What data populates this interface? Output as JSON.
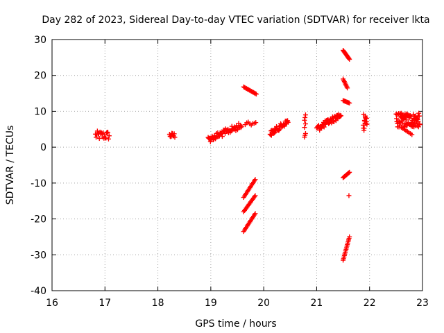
{
  "chart_data": {
    "type": "scatter",
    "title": "Day 282 of 2023, Sidereal Day-to-day VTEC variation (SDTVAR) for receiver lkta",
    "xlabel": "GPS time / hours",
    "ylabel": "SDTVAR / TECUs",
    "xlim": [
      16,
      23
    ],
    "ylim": [
      -40,
      30
    ],
    "xticks": [
      "16",
      "17",
      "18",
      "19",
      "20",
      "21",
      "22",
      "23"
    ],
    "yticks": [
      "-40",
      "-30",
      "-20",
      "-10",
      "0",
      "10",
      "20",
      "30"
    ],
    "grid": true,
    "marker": "plus",
    "color": "#ff0000",
    "series": [
      {
        "name": "SDTVAR",
        "segments": [
          {
            "x0": 16.82,
            "x1": 17.08,
            "y0": 2.0,
            "y1": 4.5,
            "n": 22,
            "trend": "spread"
          },
          {
            "x0": 18.22,
            "x1": 18.32,
            "y0": 2.5,
            "y1": 4.0,
            "n": 10,
            "trend": "spread"
          },
          {
            "x0": 18.95,
            "x1": 19.58,
            "y0": 3.0,
            "y1": 7.0,
            "n": 60,
            "trend": "up-spread"
          },
          {
            "x0": 19.65,
            "x1": 19.85,
            "y0": 6.0,
            "y1": 7.0,
            "n": 8,
            "trend": "flat"
          },
          {
            "x0": 19.62,
            "x1": 19.86,
            "y0": 16.8,
            "y1": 14.8,
            "n": 14,
            "trend": "line"
          },
          {
            "x0": 19.62,
            "x1": 19.84,
            "y0": -14.0,
            "y1": -9.0,
            "n": 14,
            "trend": "line"
          },
          {
            "x0": 19.62,
            "x1": 19.84,
            "y0": -18.0,
            "y1": -13.5,
            "n": 14,
            "trend": "line"
          },
          {
            "x0": 19.62,
            "x1": 19.84,
            "y0": -23.5,
            "y1": -18.5,
            "n": 14,
            "trend": "line"
          },
          {
            "x0": 20.12,
            "x1": 20.46,
            "y0": 4.5,
            "y1": 8.0,
            "n": 40,
            "trend": "up-spread"
          },
          {
            "x0": 20.77,
            "x1": 20.79,
            "y0": 7.5,
            "y1": 9.0,
            "n": 3,
            "trend": "line"
          },
          {
            "x0": 20.77,
            "x1": 20.79,
            "y0": 2.8,
            "y1": 3.8,
            "n": 3,
            "trend": "line"
          },
          {
            "x0": 20.77,
            "x1": 20.79,
            "y0": 5.5,
            "y1": 6.5,
            "n": 2,
            "trend": "line"
          },
          {
            "x0": 21.0,
            "x1": 21.46,
            "y0": 6.0,
            "y1": 10.0,
            "n": 50,
            "trend": "up-spread"
          },
          {
            "x0": 21.5,
            "x1": 21.62,
            "y0": 27.0,
            "y1": 24.5,
            "n": 12,
            "trend": "line"
          },
          {
            "x0": 21.5,
            "x1": 21.58,
            "y0": 19.0,
            "y1": 16.5,
            "n": 8,
            "trend": "line"
          },
          {
            "x0": 21.5,
            "x1": 21.62,
            "y0": 13.0,
            "y1": 12.3,
            "n": 8,
            "trend": "line"
          },
          {
            "x0": 21.5,
            "x1": 21.62,
            "y0": -8.5,
            "y1": -7.0,
            "n": 10,
            "trend": "line"
          },
          {
            "x0": 21.61,
            "x1": 21.61,
            "y0": -13.5,
            "y1": -13.5,
            "n": 1,
            "trend": "line"
          },
          {
            "x0": 21.5,
            "x1": 21.62,
            "y0": -31.5,
            "y1": -25.0,
            "n": 16,
            "trend": "line"
          },
          {
            "x0": 21.88,
            "x1": 21.95,
            "y0": 4.5,
            "y1": 10.5,
            "n": 16,
            "trend": "spread"
          },
          {
            "x0": 22.5,
            "x1": 22.95,
            "y0": 5.5,
            "y1": 9.5,
            "n": 90,
            "trend": "spread"
          },
          {
            "x0": 22.6,
            "x1": 22.8,
            "y0": 5.5,
            "y1": 3.5,
            "n": 8,
            "trend": "line"
          }
        ]
      }
    ]
  }
}
